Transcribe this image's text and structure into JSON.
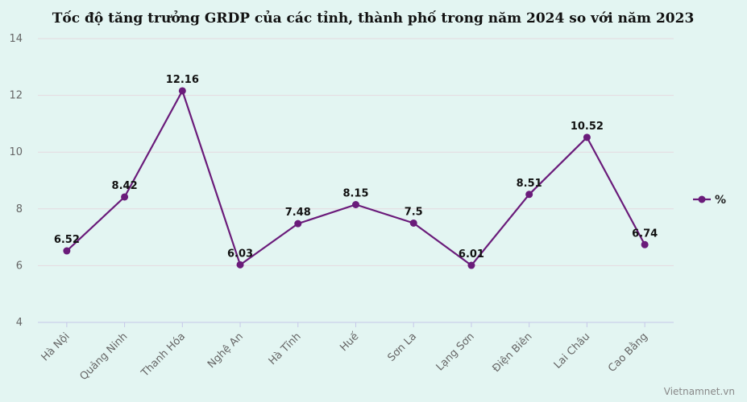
{
  "chart_data": {
    "type": "line",
    "title": "Tốc độ tăng trưởng GRDP của các tỉnh, thành phố trong năm 2024 so với năm 2023",
    "categories": [
      "Hà Nội",
      "Quảng Ninh",
      "Thanh Hóa",
      "Nghệ An",
      "Hà Tĩnh",
      "Huế",
      "Sơn La",
      "Lạng Sơn",
      "Điện Biên",
      "Lai Châu",
      "Cao Bằng"
    ],
    "series": [
      {
        "name": "%",
        "values": [
          6.52,
          8.42,
          12.16,
          6.03,
          7.48,
          8.15,
          7.5,
          6.01,
          8.51,
          10.52,
          6.74
        ],
        "labels": [
          "6.52",
          "8.42",
          "12.16",
          "6.03",
          "7.48",
          "8.15",
          "7.5",
          "6.01",
          "8.51",
          "10.52",
          "6.74"
        ],
        "color": "#6a1b7a"
      }
    ],
    "ylim": [
      4,
      14
    ],
    "yticks": [
      4,
      6,
      8,
      10,
      12,
      14
    ],
    "xlabel": "",
    "ylabel": "",
    "grid": true,
    "legend": "right"
  },
  "credit": "Vietnamnet.vn",
  "colors": {
    "background": "#e3f5f2",
    "grid": "#e6d9df",
    "axis": "#c5c8e8",
    "line": "#6a1b7a"
  }
}
